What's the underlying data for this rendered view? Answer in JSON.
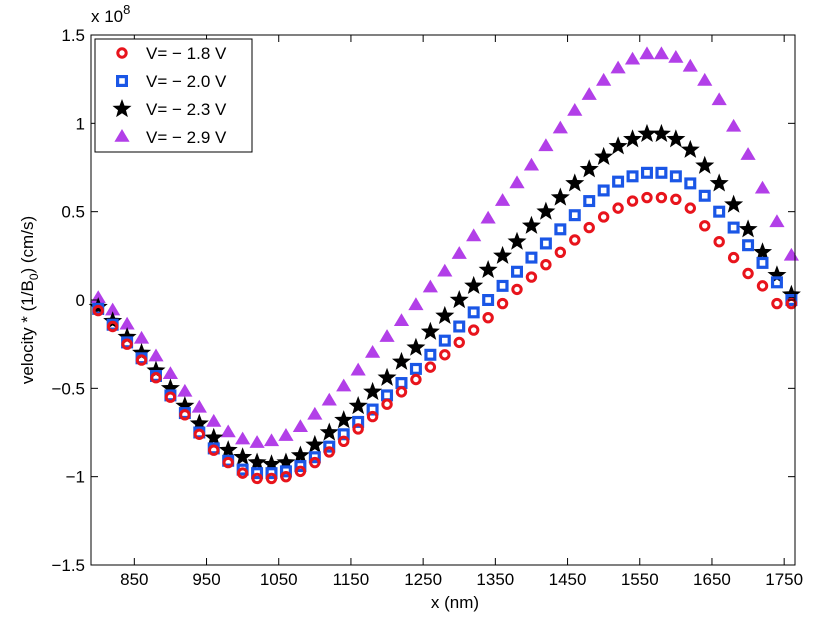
{
  "chart_data": {
    "type": "scatter",
    "xlabel": "x (nm)",
    "ylabel_main": "velocity  * (1/B",
    "ylabel_sub": "0",
    "ylabel_tail": ") (cm/s)",
    "exponent_label": "x 10",
    "exponent_power": "8",
    "xlim": [
      790,
      1765
    ],
    "ylim": [
      -1.5,
      1.5
    ],
    "xticks": [
      850,
      950,
      1050,
      1150,
      1250,
      1350,
      1450,
      1550,
      1650,
      1750
    ],
    "xtick_labels": [
      "850",
      "950",
      "1050",
      "1150",
      "1250",
      "1350",
      "1450",
      "1550",
      "1650",
      "1750"
    ],
    "yticks": [
      -1.5,
      -1,
      -0.5,
      0,
      0.5,
      1,
      1.5
    ],
    "ytick_labels": [
      "−1.5",
      "−1",
      "−0.5",
      "0",
      "0.5",
      "1",
      "1.5"
    ],
    "legend_position": "top-left",
    "x": [
      800,
      820,
      840,
      860,
      880,
      900,
      920,
      940,
      960,
      980,
      1000,
      1020,
      1040,
      1060,
      1080,
      1100,
      1120,
      1140,
      1160,
      1180,
      1200,
      1220,
      1240,
      1260,
      1280,
      1300,
      1320,
      1340,
      1360,
      1380,
      1400,
      1420,
      1440,
      1460,
      1480,
      1500,
      1520,
      1540,
      1560,
      1580,
      1600,
      1620,
      1640,
      1660,
      1680,
      1700,
      1720,
      1740,
      1760
    ],
    "series": [
      {
        "name": "V= − 1.8 V",
        "marker": "circle",
        "color": "#e8141c",
        "values": [
          -0.06,
          -0.15,
          -0.25,
          -0.34,
          -0.44,
          -0.55,
          -0.65,
          -0.76,
          -0.85,
          -0.92,
          -0.98,
          -1.01,
          -1.01,
          -1.0,
          -0.97,
          -0.92,
          -0.86,
          -0.8,
          -0.73,
          -0.66,
          -0.59,
          -0.52,
          -0.45,
          -0.38,
          -0.31,
          -0.24,
          -0.17,
          -0.1,
          -0.02,
          0.06,
          0.13,
          0.2,
          0.27,
          0.34,
          0.41,
          0.47,
          0.52,
          0.56,
          0.58,
          0.58,
          0.57,
          0.52,
          0.42,
          0.33,
          0.24,
          0.15,
          0.08,
          -0.02,
          -0.02
        ]
      },
      {
        "name": "V= − 2.0 V",
        "marker": "square",
        "color": "#1a56e6",
        "values": [
          -0.05,
          -0.14,
          -0.24,
          -0.33,
          -0.43,
          -0.54,
          -0.64,
          -0.75,
          -0.84,
          -0.91,
          -0.96,
          -0.98,
          -0.98,
          -0.97,
          -0.94,
          -0.89,
          -0.83,
          -0.76,
          -0.69,
          -0.62,
          -0.54,
          -0.47,
          -0.39,
          -0.31,
          -0.23,
          -0.15,
          -0.07,
          0.0,
          0.08,
          0.16,
          0.24,
          0.32,
          0.4,
          0.48,
          0.56,
          0.62,
          0.67,
          0.7,
          0.72,
          0.72,
          0.7,
          0.66,
          0.59,
          0.5,
          0.41,
          0.31,
          0.21,
          0.1,
          0.0
        ]
      },
      {
        "name": "V= − 2.3 V",
        "marker": "star",
        "color": "#000000",
        "values": [
          -0.04,
          -0.12,
          -0.21,
          -0.3,
          -0.4,
          -0.5,
          -0.6,
          -0.7,
          -0.78,
          -0.85,
          -0.89,
          -0.92,
          -0.93,
          -0.92,
          -0.88,
          -0.82,
          -0.75,
          -0.68,
          -0.6,
          -0.52,
          -0.44,
          -0.35,
          -0.27,
          -0.18,
          -0.09,
          0.0,
          0.08,
          0.17,
          0.25,
          0.33,
          0.42,
          0.5,
          0.58,
          0.66,
          0.74,
          0.81,
          0.87,
          0.91,
          0.94,
          0.94,
          0.91,
          0.85,
          0.76,
          0.66,
          0.54,
          0.4,
          0.27,
          0.14,
          0.03
        ]
      },
      {
        "name": "V= − 2.9 V",
        "marker": "triangle",
        "color": "#b23fe8",
        "values": [
          0.01,
          -0.06,
          -0.14,
          -0.22,
          -0.32,
          -0.42,
          -0.52,
          -0.61,
          -0.69,
          -0.75,
          -0.79,
          -0.81,
          -0.8,
          -0.77,
          -0.72,
          -0.65,
          -0.57,
          -0.49,
          -0.4,
          -0.3,
          -0.21,
          -0.12,
          -0.03,
          0.07,
          0.16,
          0.26,
          0.36,
          0.46,
          0.56,
          0.66,
          0.76,
          0.87,
          0.97,
          1.07,
          1.16,
          1.24,
          1.31,
          1.36,
          1.39,
          1.39,
          1.37,
          1.32,
          1.24,
          1.13,
          0.98,
          0.82,
          0.63,
          0.44,
          0.25
        ]
      }
    ]
  }
}
